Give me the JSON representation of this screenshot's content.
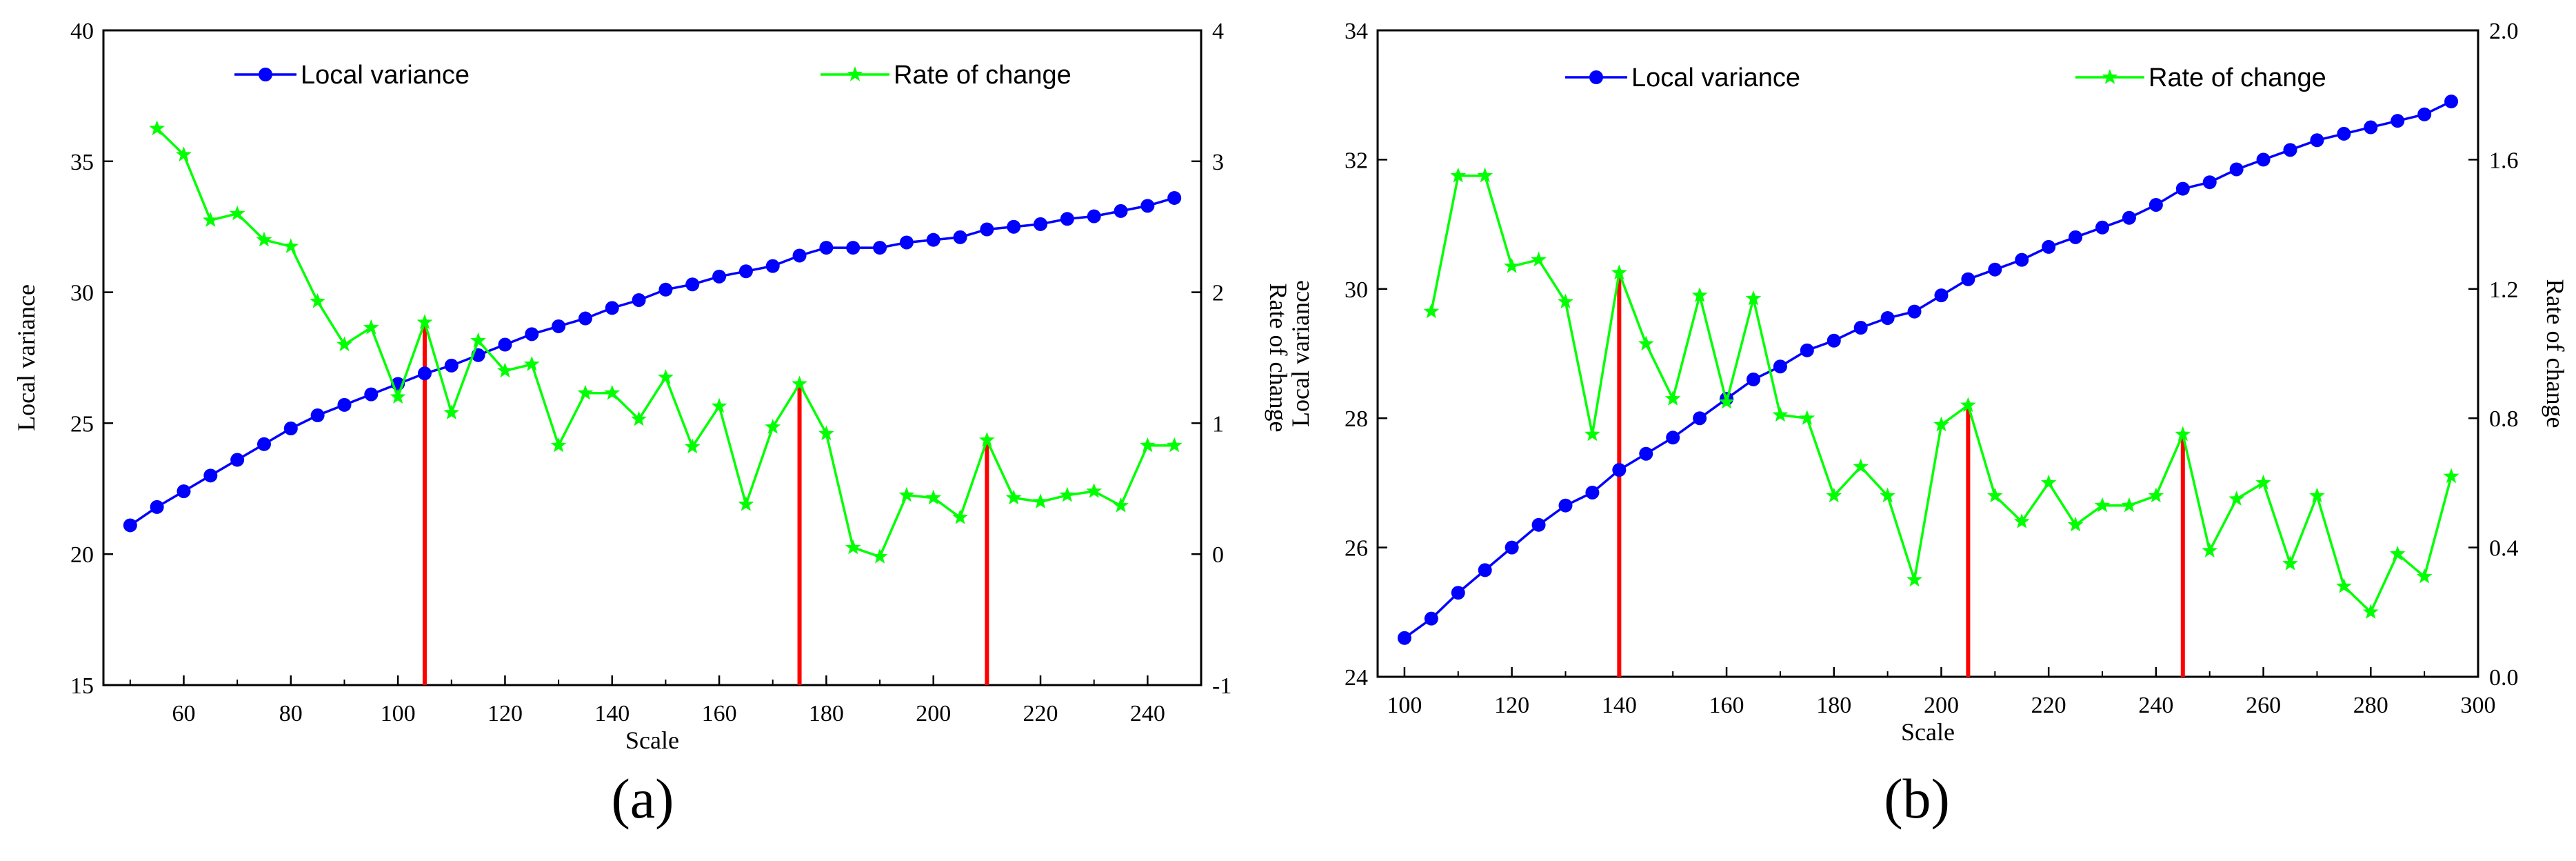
{
  "chart_data": [
    {
      "id": "a",
      "type": "line",
      "caption": "(a)",
      "xlabel": "Scale",
      "ylabel_left": "Local variance",
      "ylabel_right": "Rate of change",
      "xlim": [
        45,
        250
      ],
      "ylim_left": [
        15,
        40
      ],
      "ylim_right": [
        -1,
        4
      ],
      "xticks": [
        60,
        80,
        100,
        120,
        140,
        160,
        180,
        200,
        220,
        240
      ],
      "yticks_left": [
        15,
        20,
        25,
        30,
        35,
        40
      ],
      "yticks_right": [
        -1,
        0,
        1,
        2,
        3,
        4
      ],
      "legend": {
        "placement": "top",
        "entries": [
          "Local variance",
          "Rate of change"
        ]
      },
      "series": [
        {
          "name": "Local variance",
          "axis": "left",
          "color": "#0000ff",
          "marker": "circle",
          "x": [
            50,
            55,
            60,
            65,
            70,
            75,
            80,
            85,
            90,
            95,
            100,
            105,
            110,
            115,
            120,
            125,
            130,
            135,
            140,
            145,
            150,
            155,
            160,
            165,
            170,
            175,
            180,
            185,
            190,
            195,
            200,
            205,
            210,
            215,
            220,
            225,
            230,
            235,
            240,
            245
          ],
          "y": [
            21.1,
            21.8,
            22.4,
            23.0,
            23.6,
            24.2,
            24.8,
            25.3,
            25.7,
            26.1,
            26.5,
            26.9,
            27.2,
            27.6,
            28.0,
            28.4,
            28.7,
            29.0,
            29.4,
            29.7,
            30.1,
            30.3,
            30.6,
            30.8,
            31.0,
            31.4,
            31.7,
            31.7,
            31.7,
            31.9,
            32.0,
            32.1,
            32.4,
            32.5,
            32.6,
            32.8,
            32.9,
            33.1,
            33.3,
            33.6
          ]
        },
        {
          "name": "Rate of change",
          "axis": "right",
          "color": "#00ff00",
          "marker": "star",
          "x": [
            55,
            60,
            65,
            70,
            75,
            80,
            85,
            90,
            95,
            100,
            105,
            110,
            115,
            120,
            125,
            130,
            135,
            140,
            145,
            150,
            155,
            160,
            165,
            170,
            175,
            180,
            185,
            190,
            195,
            200,
            205,
            210,
            215,
            220,
            225,
            230,
            235,
            240,
            245
          ],
          "y": [
            3.25,
            3.05,
            2.55,
            2.6,
            2.4,
            2.35,
            1.93,
            1.6,
            1.73,
            1.2,
            1.77,
            1.08,
            1.63,
            1.4,
            1.45,
            0.83,
            1.23,
            1.23,
            1.03,
            1.35,
            0.82,
            1.13,
            0.38,
            0.97,
            1.3,
            0.92,
            0.05,
            -0.02,
            0.45,
            0.43,
            0.28,
            0.87,
            0.43,
            0.4,
            0.45,
            0.48,
            0.37,
            0.83,
            0.83
          ]
        }
      ],
      "markers_red": [
        105,
        175,
        210
      ]
    },
    {
      "id": "b",
      "type": "line",
      "caption": "(b)",
      "xlabel": "Scale",
      "ylabel_left": "Local variance",
      "ylabel_right": "Rate of change",
      "xlim": [
        95,
        300
      ],
      "ylim_left": [
        24,
        34
      ],
      "ylim_right": [
        0.0,
        2.0
      ],
      "xticks": [
        100,
        120,
        140,
        160,
        180,
        200,
        220,
        240,
        260,
        280,
        300
      ],
      "yticks_left": [
        24,
        26,
        28,
        30,
        32,
        34
      ],
      "yticks_right": [
        0.0,
        0.4,
        0.8,
        1.2,
        1.6,
        2.0
      ],
      "ytick_labels_right": [
        "0.0",
        "0.4",
        "0.8",
        "1.2",
        "1.6",
        "2.0"
      ],
      "legend": {
        "placement": "top",
        "entries": [
          "Local variance",
          "Rate of change"
        ]
      },
      "series": [
        {
          "name": "Local variance",
          "axis": "left",
          "color": "#0000ff",
          "marker": "circle",
          "x": [
            100,
            105,
            110,
            115,
            120,
            125,
            130,
            135,
            140,
            145,
            150,
            155,
            160,
            165,
            170,
            175,
            180,
            185,
            190,
            195,
            200,
            205,
            210,
            215,
            220,
            225,
            230,
            235,
            240,
            245,
            250,
            255,
            260,
            265,
            270,
            275,
            280,
            285,
            290,
            295
          ],
          "y": [
            24.6,
            24.9,
            25.3,
            25.65,
            26.0,
            26.35,
            26.65,
            26.85,
            27.2,
            27.45,
            27.7,
            28.0,
            28.3,
            28.6,
            28.8,
            29.05,
            29.2,
            29.4,
            29.55,
            29.65,
            29.9,
            30.15,
            30.3,
            30.45,
            30.65,
            30.8,
            30.95,
            31.1,
            31.3,
            31.55,
            31.65,
            31.85,
            32.0,
            32.15,
            32.3,
            32.4,
            32.5,
            32.6,
            32.7,
            32.9
          ]
        },
        {
          "name": "Rate of change",
          "axis": "right",
          "color": "#00ff00",
          "marker": "star",
          "x": [
            105,
            110,
            115,
            120,
            125,
            130,
            135,
            140,
            145,
            150,
            155,
            160,
            165,
            170,
            175,
            180,
            185,
            190,
            195,
            200,
            205,
            210,
            215,
            220,
            225,
            230,
            235,
            240,
            245,
            250,
            255,
            260,
            265,
            270,
            275,
            280,
            285,
            290,
            295
          ],
          "y": [
            1.13,
            1.55,
            1.55,
            1.27,
            1.29,
            1.16,
            0.75,
            1.25,
            1.03,
            0.86,
            1.18,
            0.85,
            1.17,
            0.81,
            0.8,
            0.56,
            0.65,
            0.56,
            0.3,
            0.78,
            0.84,
            0.56,
            0.48,
            0.6,
            0.47,
            0.53,
            0.53,
            0.56,
            0.75,
            0.39,
            0.55,
            0.6,
            0.35,
            0.56,
            0.28,
            0.2,
            0.38,
            0.31,
            0.62
          ]
        }
      ],
      "markers_red": [
        140,
        205,
        245
      ]
    }
  ]
}
